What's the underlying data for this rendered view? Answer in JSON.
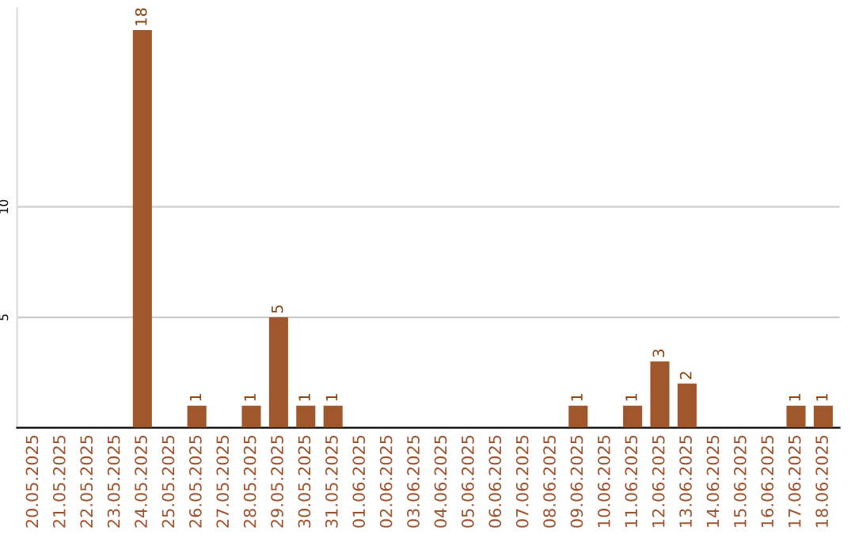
{
  "chart_data": {
    "type": "bar",
    "categories": [
      "20.05.2025",
      "21.05.2025",
      "22.05.2025",
      "23.05.2025",
      "24.05.2025",
      "25.05.2025",
      "26.05.2025",
      "27.05.2025",
      "28.05.2025",
      "29.05.2025",
      "30.05.2025",
      "31.05.2025",
      "01.06.2025",
      "02.06.2025",
      "03.06.2025",
      "04.06.2025",
      "05.06.2025",
      "06.06.2025",
      "07.06.2025",
      "08.06.2025",
      "09.06.2025",
      "10.06.2025",
      "11.06.2025",
      "12.06.2025",
      "13.06.2025",
      "14.06.2025",
      "15.06.2025",
      "16.06.2025",
      "17.06.2025",
      "18.06.2025"
    ],
    "values": [
      0,
      0,
      0,
      0,
      18,
      0,
      1,
      0,
      1,
      5,
      1,
      1,
      0,
      0,
      0,
      0,
      0,
      0,
      0,
      0,
      1,
      0,
      1,
      3,
      2,
      0,
      0,
      0,
      1,
      1
    ],
    "value_labels": [
      null,
      null,
      null,
      null,
      "18",
      null,
      "1",
      null,
      "1",
      "5",
      "1",
      "1",
      null,
      null,
      null,
      null,
      null,
      null,
      null,
      null,
      "1",
      null,
      "1",
      "3",
      "2",
      null,
      null,
      null,
      "1",
      "1"
    ],
    "color": "#a0572b",
    "ylim": [
      0,
      19
    ],
    "yticks": [
      5,
      10
    ],
    "grid": "y"
  }
}
